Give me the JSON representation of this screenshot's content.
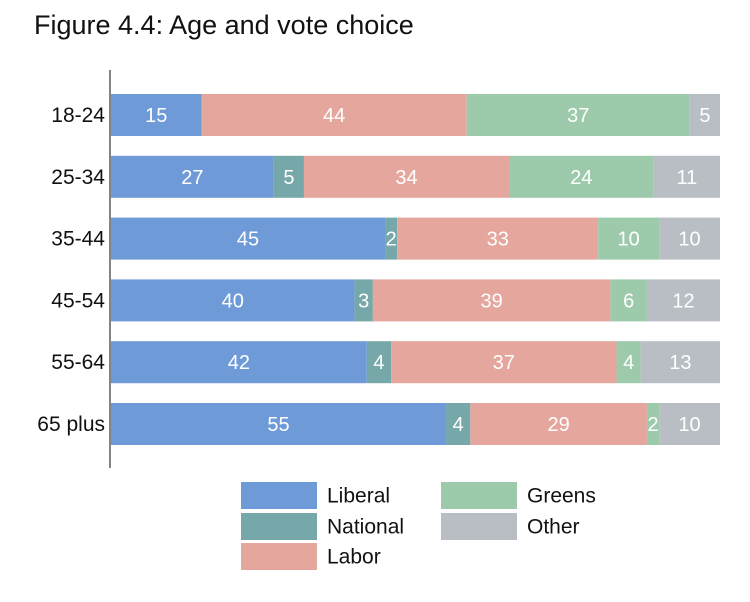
{
  "page": {
    "title": "Figure 4.4: Age and vote choice"
  },
  "chart_data": {
    "type": "bar",
    "orientation": "horizontal",
    "stacked": true,
    "title": "Figure 4.4: Age and vote choice",
    "xlabel": "",
    "ylabel": "",
    "xlim": [
      0,
      100
    ],
    "categories": [
      "18-24",
      "25-34",
      "35-44",
      "45-54",
      "55-64",
      "65 plus"
    ],
    "series": [
      {
        "key": "liberal",
        "name": "Liberal",
        "color": "#6E9BD7",
        "values": [
          15,
          27,
          45,
          40,
          42,
          55
        ]
      },
      {
        "key": "national",
        "name": "National",
        "color": "#76A8AA",
        "values": [
          0,
          5,
          2,
          3,
          4,
          4
        ]
      },
      {
        "key": "labor",
        "name": "Labor",
        "color": "#E5A69D",
        "values": [
          44,
          34,
          33,
          39,
          37,
          29
        ]
      },
      {
        "key": "greens",
        "name": "Greens",
        "color": "#9DCAAA",
        "values": [
          37,
          24,
          10,
          6,
          4,
          2
        ]
      },
      {
        "key": "other",
        "name": "Other",
        "color": "#B8BEC4",
        "values": [
          5,
          11,
          10,
          12,
          13,
          10
        ]
      }
    ],
    "data_labels": [
      [
        "15",
        "",
        "44",
        "37",
        "5"
      ],
      [
        "27",
        "5",
        "34",
        "24",
        "11"
      ],
      [
        "45",
        "2",
        "33",
        "10",
        "10"
      ],
      [
        "40",
        "3",
        "39",
        "6",
        "12"
      ],
      [
        "42",
        "4",
        "37",
        "4",
        "13"
      ],
      [
        "55",
        "4",
        "29",
        "2",
        "10"
      ]
    ],
    "grid": false,
    "legend": {
      "position": "bottom",
      "entries": [
        "Liberal",
        "National",
        "Labor",
        "Greens",
        "Other"
      ]
    }
  }
}
